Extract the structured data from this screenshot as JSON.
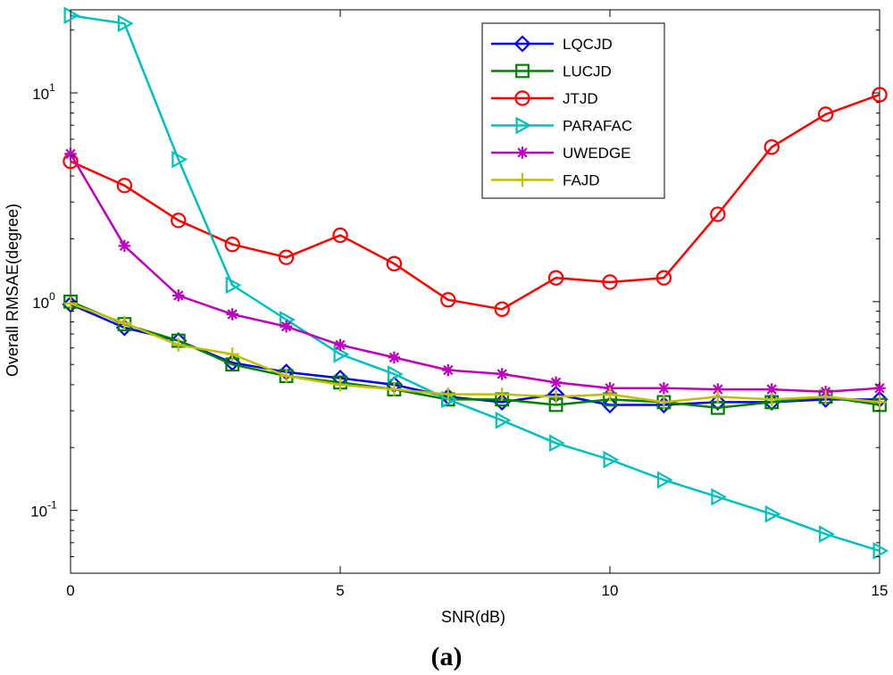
{
  "chart_data": {
    "type": "line",
    "title": "",
    "caption": "(a)",
    "xlabel": "SNR(dB)",
    "ylabel": "Overall RMSAE(degree)",
    "xlim": [
      0,
      15
    ],
    "ylim": [
      0.05,
      25
    ],
    "yscale": "log",
    "xticks": [
      0,
      5,
      10,
      15
    ],
    "xtick_labels": [
      "0",
      "5",
      "10",
      "15"
    ],
    "yticks": [
      {
        "value": 0.1,
        "base": "10",
        "exp": "-1"
      },
      {
        "value": 1,
        "base": "10",
        "exp": "0"
      },
      {
        "value": 10,
        "base": "10",
        "exp": "1"
      }
    ],
    "legend_position": "top-right",
    "x": [
      0,
      1,
      2,
      3,
      4,
      5,
      6,
      7,
      8,
      9,
      10,
      11,
      12,
      13,
      14,
      15
    ],
    "series": [
      {
        "name": "LQCJD",
        "color": "#0000ff",
        "marker": "diamond",
        "values": [
          0.97,
          0.75,
          0.65,
          0.51,
          0.46,
          0.43,
          0.4,
          0.35,
          0.33,
          0.36,
          0.32,
          0.32,
          0.33,
          0.33,
          0.34,
          0.34
        ]
      },
      {
        "name": "LUCJD",
        "color": "#008000",
        "marker": "square",
        "values": [
          1.0,
          0.78,
          0.65,
          0.5,
          0.44,
          0.41,
          0.38,
          0.34,
          0.34,
          0.32,
          0.34,
          0.33,
          0.31,
          0.33,
          0.35,
          0.32
        ]
      },
      {
        "name": "JTJD",
        "color": "#ff0000",
        "marker": "circle",
        "values": [
          4.7,
          3.6,
          2.45,
          1.88,
          1.63,
          2.08,
          1.52,
          1.02,
          0.92,
          1.3,
          1.24,
          1.3,
          2.62,
          5.5,
          7.9,
          9.8
        ]
      },
      {
        "name": "PARAFAC",
        "color": "#00c0c0",
        "marker": "triangle-right",
        "values": [
          23.5,
          21.5,
          4.8,
          1.2,
          0.82,
          0.56,
          0.45,
          0.34,
          0.27,
          0.21,
          0.175,
          0.14,
          0.116,
          0.096,
          0.077,
          0.064
        ]
      },
      {
        "name": "UWEDGE",
        "color": "#bf00bf",
        "marker": "asterisk",
        "values": [
          5.1,
          1.85,
          1.07,
          0.87,
          0.76,
          0.62,
          0.54,
          0.47,
          0.45,
          0.41,
          0.385,
          0.385,
          0.38,
          0.38,
          0.37,
          0.385
        ]
      },
      {
        "name": "FAJD",
        "color": "#bfbf00",
        "marker": "plus",
        "values": [
          0.98,
          0.79,
          0.62,
          0.56,
          0.44,
          0.4,
          0.38,
          0.36,
          0.36,
          0.35,
          0.36,
          0.33,
          0.35,
          0.34,
          0.35,
          0.33
        ]
      }
    ]
  }
}
